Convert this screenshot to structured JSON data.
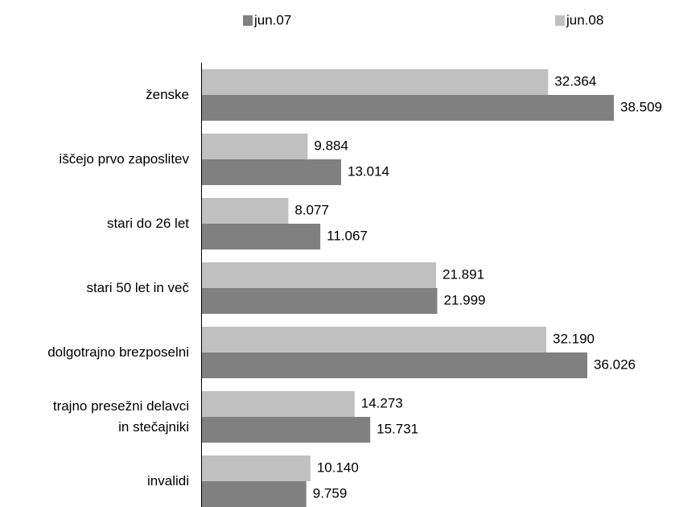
{
  "chart_data": {
    "type": "hbar",
    "categories": [
      "ženske",
      "iščejo prvo zaposlitev",
      "stari do 26 let",
      "stari 50 let in več",
      "dolgotrajno brezposelni",
      "trajno presežni delavci\nin stečajniki",
      "invalidi"
    ],
    "series": [
      {
        "name": "jun.07",
        "color": "#808080",
        "values": [
          38509,
          13014,
          11067,
          21999,
          36026,
          15731,
          9759
        ],
        "value_labels": [
          "38.509",
          "13.014",
          "11.067",
          "21.999",
          "36.026",
          "15.731",
          "9.759"
        ]
      },
      {
        "name": "jun.08",
        "color": "#c0c0c0",
        "values": [
          32364,
          9884,
          8077,
          21891,
          32190,
          14273,
          10140
        ],
        "value_labels": [
          "32.364",
          "9.884",
          "8.077",
          "21.891",
          "32.190",
          "14.273",
          "10.140"
        ]
      }
    ],
    "legend": "top"
  }
}
